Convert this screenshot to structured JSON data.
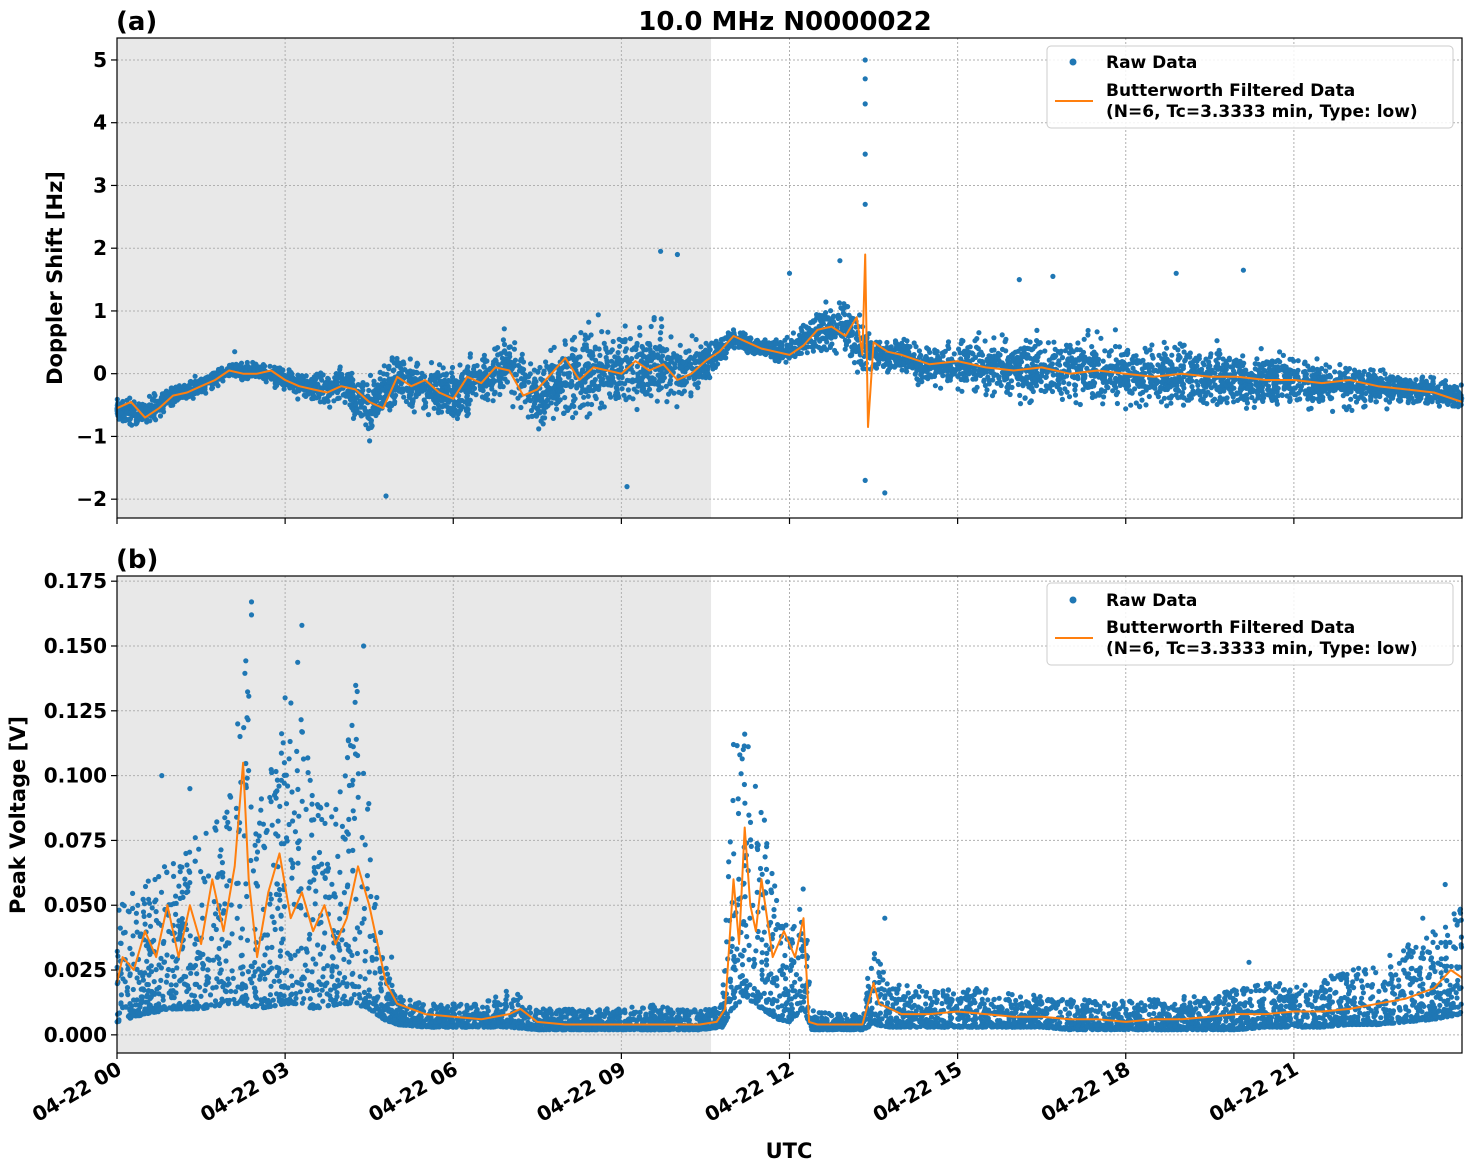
{
  "figure": {
    "title": "10.0 MHz N0000022",
    "xlabel": "UTC",
    "x_tick_labels": [
      "04-22 00",
      "04-22 03",
      "04-22 06",
      "04-22 09",
      "04-22 12",
      "04-22 15",
      "04-22 18",
      "04-22 21"
    ]
  },
  "panels": [
    {
      "label": "(a)",
      "ylabel": "Doppler Shift [Hz]",
      "y_tick_labels": [
        "−2",
        "−1",
        "0",
        "1",
        "2",
        "3",
        "4",
        "5"
      ],
      "legend": {
        "raw": "Raw Data",
        "filtered_line1": "Butterworth Filtered Data",
        "filtered_line2": "(N=6, Tc=3.3333 min, Type: low)"
      }
    },
    {
      "label": "(b)",
      "ylabel": "Peak Voltage [V]",
      "y_tick_labels": [
        "0.000",
        "0.025",
        "0.050",
        "0.075",
        "0.100",
        "0.125",
        "0.150",
        "0.175"
      ],
      "legend": {
        "raw": "Raw Data",
        "filtered_line1": "Butterworth Filtered Data",
        "filtered_line2": "(N=6, Tc=3.3333 min, Type: low)"
      }
    }
  ],
  "chart_data": [
    {
      "type": "scatter",
      "title": "10.0 MHz N0000022",
      "xlabel": "",
      "ylabel": "Doppler Shift [Hz]",
      "x_unit": "hours UTC on 04-22",
      "xlim": [
        0,
        24
      ],
      "ylim": [
        -2.3,
        5.35
      ],
      "y_ticks": [
        -2,
        -1,
        0,
        1,
        2,
        3,
        4,
        5
      ],
      "grid": true,
      "legend_position": "top-right",
      "shaded_region_x": [
        0,
        10.6
      ],
      "shaded_color": "#e8e8e8",
      "series": [
        {
          "name": "Raw Data",
          "style": "points",
          "color": "#1f77b4",
          "x": [
            0,
            0.5,
            1,
            1.5,
            2,
            2.5,
            3,
            3.5,
            4,
            4.5,
            5,
            5.5,
            6,
            6.5,
            7,
            7.5,
            8,
            8.5,
            9,
            9.5,
            10,
            10.5,
            11,
            11.5,
            12,
            12.5,
            13,
            13.25,
            13.5,
            14,
            14.5,
            15,
            15.5,
            16,
            16.5,
            17,
            17.5,
            18,
            18.5,
            19,
            19.5,
            20,
            20.5,
            21,
            21.5,
            22,
            22.5,
            23,
            23.5,
            24
          ],
          "y_center": [
            -0.55,
            -0.65,
            -0.35,
            -0.2,
            0.05,
            0.05,
            -0.1,
            -0.25,
            -0.2,
            -0.55,
            -0.1,
            -0.2,
            -0.35,
            -0.05,
            0.1,
            -0.35,
            -0.1,
            0.1,
            0.05,
            0.2,
            0.0,
            0.2,
            0.55,
            0.4,
            0.35,
            0.7,
            0.75,
            0.5,
            0.3,
            0.3,
            0.1,
            0.15,
            0.1,
            0.1,
            0.05,
            0.05,
            0.05,
            0.0,
            0.0,
            -0.05,
            -0.05,
            -0.1,
            -0.1,
            -0.1,
            -0.15,
            -0.2,
            -0.2,
            -0.25,
            -0.3,
            -0.4
          ],
          "y_spread": [
            0.2,
            0.25,
            0.2,
            0.15,
            0.15,
            0.15,
            0.2,
            0.25,
            0.3,
            0.5,
            0.5,
            0.4,
            0.45,
            0.5,
            0.55,
            0.6,
            0.7,
            0.7,
            0.7,
            0.7,
            0.6,
            0.4,
            0.15,
            0.15,
            0.2,
            0.4,
            0.5,
            0.5,
            0.3,
            0.3,
            0.35,
            0.45,
            0.5,
            0.55,
            0.55,
            0.55,
            0.55,
            0.55,
            0.55,
            0.55,
            0.55,
            0.5,
            0.5,
            0.45,
            0.45,
            0.4,
            0.35,
            0.3,
            0.25,
            0.25
          ],
          "extreme_points": [
            [
              13.35,
              5.0
            ],
            [
              13.35,
              4.7
            ],
            [
              13.35,
              4.3
            ],
            [
              13.35,
              3.5
            ],
            [
              13.35,
              2.7
            ],
            [
              13.35,
              -1.7
            ],
            [
              13.7,
              -1.9
            ],
            [
              4.8,
              -1.95
            ],
            [
              9.7,
              1.95
            ],
            [
              10.0,
              1.9
            ],
            [
              9.1,
              -1.8
            ],
            [
              16.1,
              1.5
            ],
            [
              16.7,
              1.55
            ],
            [
              20.1,
              1.65
            ],
            [
              18.9,
              1.6
            ],
            [
              2.1,
              0.35
            ],
            [
              11.0,
              0.7
            ],
            [
              12.0,
              1.6
            ],
            [
              12.9,
              1.8
            ]
          ]
        },
        {
          "name": "Butterworth Filtered Data",
          "style": "line",
          "color": "#ff7f0e",
          "x": [
            0,
            0.25,
            0.5,
            0.75,
            1,
            1.25,
            1.5,
            1.75,
            2,
            2.25,
            2.5,
            2.75,
            3,
            3.25,
            3.5,
            3.75,
            4,
            4.25,
            4.5,
            4.75,
            5,
            5.25,
            5.5,
            5.75,
            6,
            6.25,
            6.5,
            6.75,
            7,
            7.25,
            7.5,
            7.75,
            8,
            8.25,
            8.5,
            8.75,
            9,
            9.25,
            9.5,
            9.75,
            10,
            10.25,
            10.5,
            10.75,
            11,
            11.25,
            11.5,
            11.75,
            12,
            12.25,
            12.5,
            12.75,
            13,
            13.2,
            13.3,
            13.35,
            13.4,
            13.5,
            13.75,
            14,
            14.5,
            15,
            15.5,
            16,
            16.5,
            17,
            17.5,
            18,
            18.5,
            19,
            19.5,
            20,
            20.5,
            21,
            21.5,
            22,
            22.5,
            23,
            23.5,
            24
          ],
          "y": [
            -0.55,
            -0.45,
            -0.7,
            -0.55,
            -0.35,
            -0.3,
            -0.2,
            -0.1,
            0.05,
            0.0,
            0.0,
            0.05,
            -0.1,
            -0.2,
            -0.25,
            -0.3,
            -0.2,
            -0.25,
            -0.45,
            -0.55,
            -0.05,
            -0.2,
            -0.1,
            -0.3,
            -0.4,
            -0.05,
            -0.15,
            0.1,
            0.05,
            -0.35,
            -0.25,
            0.0,
            0.25,
            -0.1,
            0.1,
            0.05,
            0.0,
            0.2,
            0.05,
            0.15,
            -0.1,
            0.0,
            0.2,
            0.35,
            0.6,
            0.5,
            0.4,
            0.35,
            0.3,
            0.45,
            0.7,
            0.75,
            0.6,
            0.9,
            0.3,
            1.9,
            -0.85,
            0.5,
            0.35,
            0.3,
            0.15,
            0.2,
            0.1,
            0.05,
            0.1,
            0.0,
            0.05,
            0.0,
            -0.05,
            0.0,
            -0.05,
            -0.05,
            -0.1,
            -0.1,
            -0.15,
            -0.1,
            -0.2,
            -0.25,
            -0.3,
            -0.45
          ]
        }
      ]
    },
    {
      "type": "scatter",
      "title": "",
      "xlabel": "UTC",
      "ylabel": "Peak Voltage [V]",
      "x_unit": "hours UTC on 04-22",
      "xlim": [
        0,
        24
      ],
      "ylim": [
        -0.007,
        0.177
      ],
      "y_ticks": [
        0,
        0.025,
        0.05,
        0.075,
        0.1,
        0.125,
        0.15,
        0.175
      ],
      "grid": true,
      "legend_position": "top-right",
      "shaded_region_x": [
        0,
        10.6
      ],
      "shaded_color": "#e8e8e8",
      "series": [
        {
          "name": "Raw Data",
          "style": "points",
          "color": "#1f77b4",
          "x": [
            0,
            0.5,
            1,
            1.5,
            2,
            2.25,
            2.5,
            3,
            3.25,
            3.5,
            4,
            4.25,
            4.5,
            4.75,
            5,
            5.5,
            6,
            6.5,
            7,
            7.5,
            8,
            8.5,
            9,
            9.5,
            10,
            10.4,
            10.8,
            11,
            11.2,
            11.5,
            11.8,
            12,
            12.25,
            12.4,
            12.8,
            13,
            13.3,
            13.5,
            13.8,
            14,
            14.5,
            15,
            15.5,
            16,
            16.5,
            17,
            17.5,
            18,
            18.5,
            19,
            19.5,
            20,
            20.5,
            21,
            21.5,
            22,
            22.5,
            23,
            23.5,
            24
          ],
          "y_low": [
            0.005,
            0.008,
            0.01,
            0.01,
            0.012,
            0.012,
            0.01,
            0.012,
            0.012,
            0.01,
            0.012,
            0.012,
            0.01,
            0.006,
            0.004,
            0.003,
            0.003,
            0.003,
            0.003,
            0.002,
            0.002,
            0.002,
            0.002,
            0.002,
            0.002,
            0.002,
            0.003,
            0.01,
            0.015,
            0.01,
            0.006,
            0.005,
            0.01,
            0.002,
            0.002,
            0.002,
            0.002,
            0.004,
            0.003,
            0.003,
            0.003,
            0.003,
            0.003,
            0.003,
            0.003,
            0.002,
            0.002,
            0.002,
            0.002,
            0.002,
            0.002,
            0.002,
            0.003,
            0.003,
            0.003,
            0.004,
            0.004,
            0.005,
            0.006,
            0.008
          ],
          "y_high": [
            0.05,
            0.06,
            0.07,
            0.08,
            0.09,
            0.16,
            0.1,
            0.12,
            0.15,
            0.09,
            0.1,
            0.14,
            0.09,
            0.03,
            0.015,
            0.012,
            0.012,
            0.012,
            0.018,
            0.01,
            0.01,
            0.01,
            0.01,
            0.012,
            0.01,
            0.01,
            0.012,
            0.11,
            0.12,
            0.09,
            0.05,
            0.04,
            0.06,
            0.01,
            0.008,
            0.008,
            0.008,
            0.04,
            0.02,
            0.02,
            0.018,
            0.02,
            0.018,
            0.016,
            0.015,
            0.015,
            0.013,
            0.013,
            0.014,
            0.015,
            0.015,
            0.018,
            0.02,
            0.02,
            0.022,
            0.025,
            0.028,
            0.035,
            0.04,
            0.05
          ],
          "extreme_points": [
            [
              2.4,
              0.167
            ],
            [
              2.4,
              0.162
            ],
            [
              3.3,
              0.158
            ],
            [
              4.4,
              0.15
            ],
            [
              3.0,
              0.13
            ],
            [
              0.8,
              0.1
            ],
            [
              1.3,
              0.095
            ],
            [
              4.9,
              0.03
            ],
            [
              11.2,
              0.116
            ],
            [
              11.0,
              0.112
            ],
            [
              13.7,
              0.045
            ],
            [
              20.2,
              0.028
            ],
            [
              23.7,
              0.058
            ],
            [
              23.3,
              0.045
            ]
          ]
        },
        {
          "name": "Butterworth Filtered Data",
          "style": "line",
          "color": "#ff7f0e",
          "x": [
            0,
            0.1,
            0.3,
            0.5,
            0.7,
            0.9,
            1.1,
            1.3,
            1.5,
            1.7,
            1.9,
            2.1,
            2.25,
            2.35,
            2.5,
            2.7,
            2.9,
            3.1,
            3.3,
            3.5,
            3.7,
            3.9,
            4.1,
            4.3,
            4.5,
            4.65,
            4.8,
            5.0,
            5.5,
            6.0,
            6.5,
            7.0,
            7.2,
            7.5,
            8.0,
            8.5,
            9.0,
            9.5,
            10.0,
            10.4,
            10.7,
            10.85,
            11.0,
            11.1,
            11.2,
            11.3,
            11.4,
            11.5,
            11.7,
            11.9,
            12.1,
            12.25,
            12.35,
            12.5,
            13.0,
            13.3,
            13.5,
            13.6,
            13.8,
            14.0,
            14.5,
            15.0,
            15.5,
            16.0,
            16.5,
            17.0,
            17.5,
            18.0,
            18.5,
            19.0,
            19.5,
            20.0,
            20.5,
            21.0,
            21.5,
            22.0,
            22.5,
            23.0,
            23.5,
            23.8,
            24.0
          ],
          "y": [
            0.02,
            0.03,
            0.025,
            0.04,
            0.03,
            0.05,
            0.03,
            0.05,
            0.035,
            0.06,
            0.04,
            0.065,
            0.105,
            0.06,
            0.03,
            0.055,
            0.07,
            0.045,
            0.055,
            0.04,
            0.05,
            0.035,
            0.045,
            0.065,
            0.05,
            0.035,
            0.02,
            0.012,
            0.008,
            0.007,
            0.006,
            0.008,
            0.01,
            0.005,
            0.004,
            0.004,
            0.004,
            0.004,
            0.004,
            0.004,
            0.005,
            0.01,
            0.06,
            0.035,
            0.08,
            0.05,
            0.04,
            0.06,
            0.03,
            0.04,
            0.03,
            0.045,
            0.005,
            0.004,
            0.004,
            0.004,
            0.02,
            0.012,
            0.01,
            0.008,
            0.008,
            0.009,
            0.008,
            0.007,
            0.007,
            0.006,
            0.006,
            0.005,
            0.006,
            0.006,
            0.007,
            0.008,
            0.008,
            0.009,
            0.009,
            0.01,
            0.012,
            0.014,
            0.018,
            0.025,
            0.022
          ]
        }
      ]
    }
  ]
}
